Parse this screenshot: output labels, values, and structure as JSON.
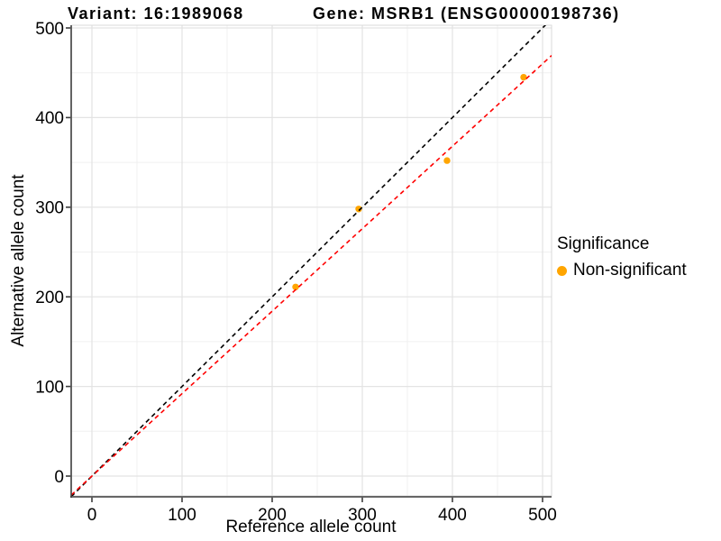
{
  "titles": {
    "variant": "Variant: 16:1989068",
    "gene": "Gene: MSRB1 (ENSG00000198736)"
  },
  "legend": {
    "title": "Significance",
    "items": [
      {
        "label": "Non-significant",
        "color": "#FFA500"
      }
    ]
  },
  "chart_data": {
    "type": "scatter",
    "title": "Variant: 16:1989068 | Gene: MSRB1 (ENSG00000198736)",
    "xlabel": "Reference allele count",
    "ylabel": "Alternative allele count",
    "xlim": [
      -23,
      510
    ],
    "ylim": [
      -22,
      503
    ],
    "x_ticks": [
      0,
      100,
      200,
      300,
      400,
      500
    ],
    "y_ticks": [
      0,
      100,
      200,
      300,
      400,
      500
    ],
    "grid": true,
    "legend_position": "right",
    "series": [
      {
        "name": "Non-significant",
        "color": "#FFA500",
        "marker": "circle",
        "points": [
          [
            226,
            211
          ],
          [
            296,
            298
          ],
          [
            394,
            352
          ],
          [
            479,
            445
          ]
        ]
      }
    ],
    "reference_lines": [
      {
        "name": "identity",
        "slope": 1,
        "intercept": 0,
        "color": "#000000",
        "style": "dashed"
      },
      {
        "name": "fit",
        "slope": 0.92,
        "intercept": 0,
        "color": "#FF0000",
        "style": "dashed"
      }
    ]
  }
}
